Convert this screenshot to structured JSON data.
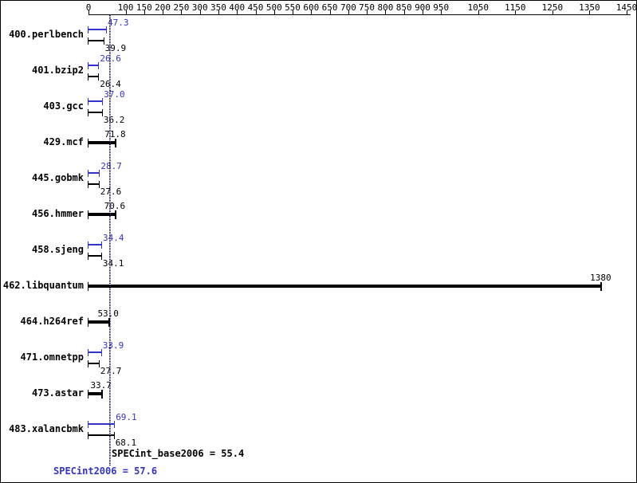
{
  "chart_data": {
    "type": "bar",
    "orientation": "horizontal",
    "x_axis": {
      "position": "top",
      "ticks": [
        0,
        100,
        150,
        200,
        250,
        300,
        350,
        400,
        450,
        500,
        550,
        600,
        650,
        700,
        750,
        800,
        850,
        900,
        950,
        1050,
        1150,
        1250,
        1350,
        1450
      ],
      "range": [
        0,
        1460
      ],
      "grid": false
    },
    "benchmarks": [
      {
        "name": "400.perlbench",
        "peak": 47.3,
        "peak_text": "47.3",
        "base": 39.9,
        "base_text": "39.9"
      },
      {
        "name": "401.bzip2",
        "peak": 26.6,
        "peak_text": "26.6",
        "base": 26.4,
        "base_text": "26.4"
      },
      {
        "name": "403.gcc",
        "peak": 37.0,
        "peak_text": "37.0",
        "base": 36.2,
        "base_text": "36.2"
      },
      {
        "name": "429.mcf",
        "peak": null,
        "peak_text": null,
        "base": 71.8,
        "base_text": "71.8"
      },
      {
        "name": "445.gobmk",
        "peak": 28.7,
        "peak_text": "28.7",
        "base": 27.6,
        "base_text": "27.6"
      },
      {
        "name": "456.hmmer",
        "peak": null,
        "peak_text": null,
        "base": 70.6,
        "base_text": "70.6"
      },
      {
        "name": "458.sjeng",
        "peak": 34.4,
        "peak_text": "34.4",
        "base": 34.1,
        "base_text": "34.1"
      },
      {
        "name": "462.libquantum",
        "peak": null,
        "peak_text": null,
        "base": 1380,
        "base_text": "1380"
      },
      {
        "name": "464.h264ref",
        "peak": null,
        "peak_text": null,
        "base": 53.0,
        "base_text": "53.0"
      },
      {
        "name": "471.omnetpp",
        "peak": 33.9,
        "peak_text": "33.9",
        "base": 27.7,
        "base_text": "27.7"
      },
      {
        "name": "473.astar",
        "peak": null,
        "peak_text": null,
        "base": 33.7,
        "base_text": "33.7"
      },
      {
        "name": "483.xalancbmk",
        "peak": 69.1,
        "peak_text": "69.1",
        "base": 68.1,
        "base_text": "68.1"
      }
    ],
    "summary": {
      "base_label": "SPECint_base2006 = 55.4",
      "base_value": 55.4,
      "peak_label": "SPECint2006 = 57.6",
      "peak_value": 57.6
    },
    "colors": {
      "peak": "#3333cc",
      "base": "#000000",
      "axis": "#000000",
      "background": "#ffffff"
    }
  }
}
